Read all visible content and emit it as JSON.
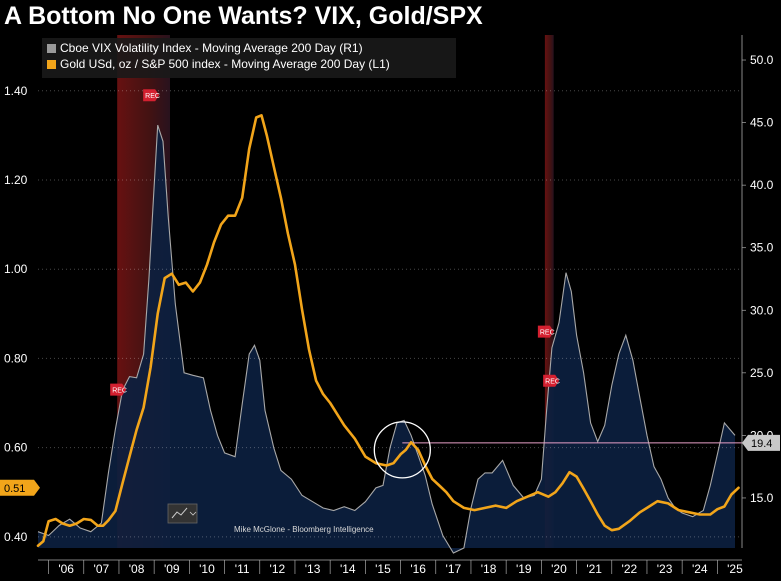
{
  "title": "A Bottom No One Wants? VIX, Gold/SPX",
  "chart_data": {
    "type": "line",
    "legend": [
      {
        "label": "Cboe VIX Volatility Index - Moving Average 200 Day (R1)",
        "color": "#9a9a9a"
      },
      {
        "label": "Gold USd, oz / S&P 500 index - Moving Average 200 Day (L1)",
        "color": "#f2a51a"
      }
    ],
    "legend_position": "top-left",
    "x_ticks": [
      "'06",
      "'07",
      "'08",
      "'09",
      "'10",
      "'11",
      "'12",
      "'13",
      "'14",
      "'15",
      "'16",
      "'17",
      "'18",
      "'19",
      "'20",
      "'21",
      "'22",
      "'23",
      "'24",
      "'25"
    ],
    "x_range": [
      2005.7,
      2025.7
    ],
    "left_axis": {
      "range": [
        0.375,
        1.525
      ],
      "ticks": [
        "0.40",
        "0.60",
        "0.80",
        "1.00",
        "1.20",
        "1.40"
      ]
    },
    "right_axis": {
      "range": [
        11.0,
        52.0
      ],
      "ticks": [
        "15.0",
        "20.0",
        "25.0",
        "30.0",
        "35.0",
        "40.0",
        "45.0",
        "50.0"
      ]
    },
    "recession_bands": [
      [
        2007.95,
        2009.45
      ],
      [
        2020.1,
        2020.35
      ]
    ],
    "rec_label": "REC",
    "current_values": {
      "gold_spx": "0.51",
      "vix": "19.4"
    },
    "reference_line_vix": 19.4,
    "annotation_circle": {
      "x": 2016.05,
      "y": 0.595
    },
    "source": "Mike McGlone - Bloomberg Intelligence",
    "vix_series": {
      "name": "Cboe VIX Volatility Index - Moving Average 200 Day (R1)",
      "x": [
        2005.7,
        2006.0,
        2006.3,
        2006.6,
        2006.9,
        2007.2,
        2007.5,
        2007.7,
        2007.9,
        2008.1,
        2008.3,
        2008.5,
        2008.7,
        2008.85,
        2009.0,
        2009.1,
        2009.25,
        2009.4,
        2009.6,
        2009.85,
        2010.1,
        2010.4,
        2010.6,
        2010.8,
        2011.0,
        2011.3,
        2011.5,
        2011.7,
        2011.85,
        2012.0,
        2012.15,
        2012.4,
        2012.6,
        2012.9,
        2013.2,
        2013.5,
        2013.8,
        2014.1,
        2014.4,
        2014.7,
        2015.0,
        2015.3,
        2015.5,
        2015.7,
        2015.9,
        2016.1,
        2016.3,
        2016.5,
        2016.7,
        2016.9,
        2017.2,
        2017.5,
        2017.8,
        2018.0,
        2018.2,
        2018.4,
        2018.6,
        2018.9,
        2019.2,
        2019.5,
        2019.8,
        2020.0,
        2020.15,
        2020.3,
        2020.5,
        2020.7,
        2020.85,
        2021.0,
        2021.2,
        2021.4,
        2021.6,
        2021.8,
        2022.0,
        2022.2,
        2022.4,
        2022.6,
        2022.8,
        2023.0,
        2023.2,
        2023.4,
        2023.6,
        2023.8,
        2024.0,
        2024.3,
        2024.6,
        2024.8,
        2025.0,
        2025.2,
        2025.5
      ],
      "y": [
        12.3,
        12.0,
        12.8,
        13.3,
        12.6,
        12.3,
        13.0,
        17.0,
        20.5,
        23.6,
        24.7,
        24.6,
        26.5,
        32.5,
        40.0,
        44.8,
        43.5,
        37.5,
        30.5,
        25.0,
        24.8,
        24.6,
        22.0,
        20.0,
        18.6,
        18.3,
        22.5,
        26.5,
        27.2,
        26.0,
        22.0,
        19.0,
        17.2,
        16.5,
        15.2,
        14.7,
        14.2,
        14.0,
        14.3,
        14.0,
        14.7,
        15.8,
        16.0,
        19.0,
        21.0,
        21.2,
        20.0,
        18.4,
        16.8,
        14.5,
        12.0,
        10.6,
        11.0,
        14.2,
        16.5,
        17.0,
        17.0,
        18.0,
        16.0,
        15.0,
        15.2,
        16.5,
        22.0,
        27.0,
        29.0,
        33.0,
        31.5,
        28.0,
        25.0,
        21.0,
        19.5,
        20.8,
        24.0,
        26.5,
        28.0,
        26.0,
        23.0,
        20.0,
        17.5,
        16.5,
        15.0,
        14.2,
        13.8,
        13.5,
        14.0,
        16.0,
        18.5,
        21.0,
        20.0
      ]
    },
    "gold_spx_series": {
      "name": "Gold USd, oz / S&P 500 index - Moving Average 200 Day (L1)",
      "x": [
        2005.7,
        2005.85,
        2006.0,
        2006.2,
        2006.4,
        2006.6,
        2006.8,
        2007.0,
        2007.2,
        2007.4,
        2007.55,
        2007.7,
        2007.9,
        2008.1,
        2008.3,
        2008.5,
        2008.7,
        2008.9,
        2009.1,
        2009.3,
        2009.5,
        2009.7,
        2009.9,
        2010.1,
        2010.3,
        2010.5,
        2010.7,
        2010.9,
        2011.1,
        2011.3,
        2011.5,
        2011.7,
        2011.9,
        2012.05,
        2012.2,
        2012.4,
        2012.6,
        2012.8,
        2013.0,
        2013.2,
        2013.4,
        2013.6,
        2013.8,
        2014.0,
        2014.2,
        2014.4,
        2014.7,
        2015.0,
        2015.3,
        2015.6,
        2015.8,
        2016.0,
        2016.15,
        2016.3,
        2016.5,
        2016.7,
        2016.9,
        2017.1,
        2017.3,
        2017.5,
        2017.8,
        2018.1,
        2018.4,
        2018.7,
        2019.0,
        2019.3,
        2019.6,
        2019.9,
        2020.2,
        2020.4,
        2020.6,
        2020.8,
        2021.0,
        2021.2,
        2021.4,
        2021.6,
        2021.8,
        2022.0,
        2022.2,
        2022.5,
        2022.8,
        2023.0,
        2023.3,
        2023.6,
        2023.9,
        2024.2,
        2024.5,
        2024.8,
        2025.0,
        2025.2,
        2025.4,
        2025.6
      ],
      "y": [
        0.38,
        0.39,
        0.435,
        0.44,
        0.43,
        0.425,
        0.43,
        0.44,
        0.438,
        0.425,
        0.425,
        0.437,
        0.458,
        0.52,
        0.58,
        0.64,
        0.69,
        0.78,
        0.9,
        0.98,
        0.99,
        0.965,
        0.97,
        0.95,
        0.97,
        1.01,
        1.06,
        1.1,
        1.12,
        1.12,
        1.16,
        1.27,
        1.34,
        1.345,
        1.3,
        1.23,
        1.16,
        1.08,
        1.01,
        0.91,
        0.82,
        0.75,
        0.72,
        0.7,
        0.675,
        0.65,
        0.62,
        0.58,
        0.565,
        0.56,
        0.565,
        0.585,
        0.595,
        0.612,
        0.595,
        0.56,
        0.53,
        0.515,
        0.5,
        0.48,
        0.465,
        0.46,
        0.465,
        0.47,
        0.465,
        0.48,
        0.49,
        0.5,
        0.49,
        0.5,
        0.52,
        0.545,
        0.535,
        0.508,
        0.48,
        0.45,
        0.425,
        0.415,
        0.418,
        0.435,
        0.455,
        0.465,
        0.48,
        0.475,
        0.46,
        0.455,
        0.45,
        0.45,
        0.462,
        0.468,
        0.495,
        0.51
      ]
    }
  }
}
